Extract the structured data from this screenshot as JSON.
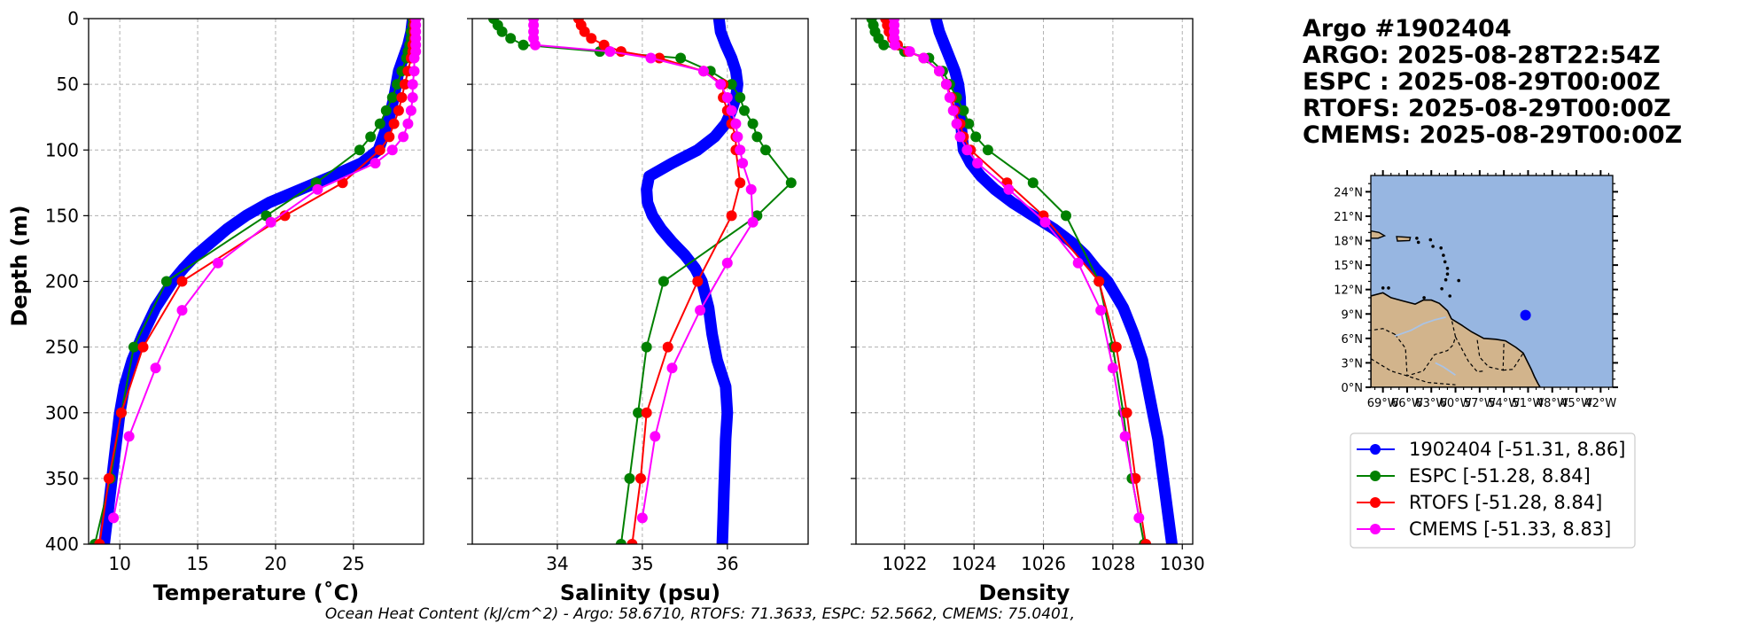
{
  "chart_data": {
    "type": "line",
    "depth_axis": {
      "label": "Depth (m)",
      "ylim": [
        400,
        0
      ],
      "ticks": [
        0,
        50,
        100,
        150,
        200,
        250,
        300,
        350,
        400
      ],
      "grid": true
    },
    "panels": [
      {
        "id": "temperature",
        "xlabel": "Temperature (˚C)",
        "xlim": [
          8,
          29.5
        ],
        "xticks": [
          10,
          15,
          20,
          25
        ],
        "series": [
          {
            "name": "1902404 [-51.31, 8.86]",
            "color": "#0000ff",
            "style": "thick",
            "depth": [
              0,
              10,
              20,
              30,
              40,
              60,
              80,
              100,
              110,
              120,
              130,
              140,
              150,
              160,
              170,
              180,
              190,
              200,
              220,
              240,
              260,
              280,
              300,
              320,
              340,
              360,
              380,
              400
            ],
            "values": [
              28.8,
              28.7,
              28.5,
              28.2,
              27.9,
              27.6,
              27.2,
              26.6,
              25.5,
              23.6,
              21.6,
              19.6,
              18.1,
              16.9,
              15.9,
              14.9,
              14.1,
              13.4,
              12.3,
              11.5,
              10.8,
              10.3,
              10.0,
              9.8,
              9.6,
              9.4,
              9.2,
              9.0
            ]
          },
          {
            "name": "ESPC [-51.28, 8.84]",
            "color": "#008000",
            "style": "marker",
            "depth": [
              0,
              5,
              10,
              15,
              20,
              25,
              30,
              40,
              50,
              60,
              70,
              80,
              90,
              100,
              125,
              150,
              200,
              250,
              300,
              350,
              400
            ],
            "values": [
              28.8,
              28.8,
              28.7,
              28.7,
              28.6,
              28.5,
              28.4,
              28.1,
              27.8,
              27.5,
              27.1,
              26.7,
              26.1,
              25.4,
              22.6,
              19.4,
              13.0,
              10.9,
              10.1,
              9.4,
              8.4
            ]
          },
          {
            "name": "RTOFS [-51.28, 8.84]",
            "color": "#ff0000",
            "style": "marker",
            "depth": [
              0,
              5,
              10,
              15,
              20,
              25,
              30,
              40,
              50,
              60,
              70,
              80,
              90,
              100,
              125,
              150,
              200,
              250,
              300,
              350,
              400
            ],
            "values": [
              28.9,
              28.9,
              28.9,
              28.9,
              28.8,
              28.8,
              28.7,
              28.5,
              28.3,
              28.1,
              27.9,
              27.6,
              27.3,
              26.7,
              24.3,
              20.6,
              14.0,
              11.5,
              10.1,
              9.3,
              8.7
            ]
          },
          {
            "name": "CMEMS [-51.33, 8.83]",
            "color": "#ff00ff",
            "style": "marker",
            "depth": [
              0,
              5,
              10,
              15,
              20,
              25,
              30,
              40,
              50,
              60,
              70,
              80,
              90,
              100,
              110,
              130,
              155,
              186,
              222,
              266,
              318,
              380
            ],
            "values": [
              29.0,
              29.0,
              29.0,
              29.0,
              29.0,
              29.0,
              28.9,
              28.9,
              28.8,
              28.8,
              28.7,
              28.5,
              28.2,
              27.5,
              26.4,
              22.7,
              19.7,
              16.3,
              14.0,
              12.3,
              10.6,
              9.6
            ]
          }
        ]
      },
      {
        "id": "salinity",
        "xlabel": "Salinity (psu)",
        "xlim": [
          33.0,
          36.95
        ],
        "xticks": [
          34,
          35,
          36
        ],
        "series": [
          {
            "name": "1902404 [-51.31, 8.86]",
            "color": "#0000ff",
            "style": "thick",
            "depth": [
              0,
              10,
              20,
              30,
              40,
              50,
              60,
              70,
              80,
              90,
              100,
              110,
              120,
              130,
              140,
              150,
              160,
              170,
              180,
              190,
              200,
              220,
              240,
              260,
              280,
              300,
              320,
              340,
              360,
              380,
              400
            ],
            "values": [
              35.9,
              35.92,
              35.98,
              36.05,
              36.1,
              36.12,
              36.1,
              36.05,
              35.98,
              35.85,
              35.65,
              35.35,
              35.08,
              35.05,
              35.06,
              35.12,
              35.22,
              35.35,
              35.5,
              35.62,
              35.7,
              35.78,
              35.82,
              35.88,
              35.98,
              36.0,
              35.98,
              35.97,
              35.96,
              35.95,
              35.94
            ]
          },
          {
            "name": "ESPC [-51.28, 8.84]",
            "color": "#008000",
            "style": "marker",
            "depth": [
              0,
              5,
              10,
              15,
              20,
              25,
              30,
              40,
              50,
              60,
              70,
              80,
              90,
              100,
              125,
              150,
              200,
              250,
              300,
              350,
              400
            ],
            "values": [
              33.25,
              33.3,
              33.35,
              33.45,
              33.6,
              34.5,
              35.45,
              35.8,
              36.05,
              36.15,
              36.2,
              36.3,
              36.35,
              36.45,
              36.75,
              36.35,
              35.25,
              35.05,
              34.95,
              34.85,
              34.75
            ]
          },
          {
            "name": "RTOFS [-51.28, 8.84]",
            "color": "#ff0000",
            "style": "marker",
            "depth": [
              0,
              5,
              10,
              15,
              20,
              25,
              30,
              40,
              50,
              60,
              70,
              80,
              90,
              100,
              125,
              150,
              200,
              250,
              300,
              350,
              400
            ],
            "values": [
              34.25,
              34.28,
              34.32,
              34.4,
              34.55,
              34.75,
              35.2,
              35.72,
              35.95,
              35.95,
              36.0,
              36.05,
              36.1,
              36.1,
              36.15,
              36.05,
              35.65,
              35.3,
              35.05,
              34.98,
              34.88
            ]
          },
          {
            "name": "CMEMS [-51.33, 8.83]",
            "color": "#ff00ff",
            "style": "marker",
            "depth": [
              0,
              5,
              10,
              15,
              20,
              25,
              30,
              40,
              50,
              60,
              70,
              80,
              90,
              100,
              110,
              130,
              155,
              186,
              222,
              266,
              318,
              380
            ],
            "values": [
              33.72,
              33.72,
              33.72,
              33.72,
              33.74,
              34.62,
              35.1,
              35.72,
              35.92,
              36.0,
              36.05,
              36.1,
              36.12,
              36.15,
              36.18,
              36.28,
              36.3,
              36.0,
              35.68,
              35.35,
              35.15,
              35.0
            ]
          }
        ]
      },
      {
        "id": "density",
        "xlabel": "Density",
        "xlim": [
          1020.6,
          1030.3
        ],
        "xticks": [
          1022,
          1024,
          1026,
          1028,
          1030
        ],
        "series": [
          {
            "name": "1902404 [-51.31, 8.86]",
            "color": "#0000ff",
            "style": "thick",
            "depth": [
              0,
              10,
              20,
              30,
              40,
              50,
              60,
              80,
              100,
              110,
              120,
              130,
              140,
              150,
              160,
              170,
              180,
              190,
              200,
              220,
              240,
              260,
              280,
              300,
              320,
              340,
              360,
              380,
              400
            ],
            "values": [
              1022.9,
              1023.0,
              1023.15,
              1023.3,
              1023.45,
              1023.55,
              1023.6,
              1023.62,
              1023.7,
              1023.9,
              1024.2,
              1024.6,
              1025.1,
              1025.7,
              1026.3,
              1026.8,
              1027.2,
              1027.5,
              1027.85,
              1028.3,
              1028.6,
              1028.85,
              1029.0,
              1029.15,
              1029.3,
              1029.4,
              1029.5,
              1029.6,
              1029.7
            ]
          },
          {
            "name": "ESPC [-51.28, 8.84]",
            "color": "#008000",
            "style": "marker",
            "depth": [
              0,
              5,
              10,
              15,
              20,
              25,
              30,
              40,
              50,
              60,
              70,
              80,
              90,
              100,
              125,
              150,
              200,
              250,
              300,
              350,
              400
            ],
            "values": [
              1021.05,
              1021.1,
              1021.15,
              1021.25,
              1021.4,
              1022.0,
              1022.7,
              1023.1,
              1023.3,
              1023.5,
              1023.7,
              1023.85,
              1024.05,
              1024.4,
              1025.7,
              1026.65,
              1027.6,
              1028.0,
              1028.3,
              1028.55,
              1028.9
            ]
          },
          {
            "name": "RTOFS [-51.28, 8.84]",
            "color": "#ff0000",
            "style": "marker",
            "depth": [
              0,
              5,
              10,
              15,
              20,
              25,
              30,
              40,
              50,
              60,
              70,
              80,
              90,
              100,
              125,
              150,
              200,
              250,
              300,
              350,
              400
            ],
            "values": [
              1021.45,
              1021.5,
              1021.55,
              1021.65,
              1021.8,
              1022.1,
              1022.55,
              1023.0,
              1023.2,
              1023.35,
              1023.45,
              1023.6,
              1023.7,
              1023.9,
              1024.95,
              1026.0,
              1027.6,
              1028.1,
              1028.4,
              1028.65,
              1028.95
            ]
          },
          {
            "name": "CMEMS [-51.33, 8.83]",
            "color": "#ff00ff",
            "style": "marker",
            "depth": [
              0,
              5,
              10,
              15,
              20,
              25,
              30,
              40,
              50,
              60,
              70,
              80,
              90,
              100,
              110,
              130,
              155,
              186,
              222,
              266,
              318,
              380
            ],
            "values": [
              1021.7,
              1021.7,
              1021.7,
              1021.7,
              1021.72,
              1022.15,
              1022.55,
              1023.0,
              1023.2,
              1023.3,
              1023.4,
              1023.5,
              1023.6,
              1023.8,
              1024.1,
              1025.0,
              1026.05,
              1027.0,
              1027.65,
              1028.0,
              1028.35,
              1028.75
            ]
          }
        ]
      }
    ],
    "caption": "Ocean Heat Content (kJ/cm^2) - Argo: 58.6710,  RTOFS: 71.3633,  ESPC: 52.5662,  CMEMS: 75.0401,"
  },
  "info": {
    "title_lines": [
      "Argo #1902404",
      "ARGO: 2025-08-28T22:54Z",
      "ESPC : 2025-08-29T00:00Z",
      "RTOFS: 2025-08-29T00:00Z",
      "CMEMS: 2025-08-29T00:00Z"
    ]
  },
  "map": {
    "lon_range": [
      -70.5,
      -40.5
    ],
    "lat_range": [
      0,
      26
    ],
    "lat_ticks": [
      "24°N",
      "21°N",
      "18°N",
      "15°N",
      "12°N",
      "9°N",
      "6°N",
      "3°N",
      "0°N"
    ],
    "lat_tick_values": [
      24,
      21,
      18,
      15,
      12,
      9,
      6,
      3,
      0
    ],
    "lon_ticks": [
      "69°W",
      "66°W",
      "63°W",
      "60°W",
      "57°W",
      "54°W",
      "51°W",
      "48°W",
      "45°W",
      "42°W"
    ],
    "lon_tick_values": [
      -69,
      -66,
      -63,
      -60,
      -57,
      -54,
      -51,
      -48,
      -45,
      -42
    ],
    "float_location": {
      "lon": -51.31,
      "lat": 8.86
    },
    "ocean_color": "#97b6e1",
    "land_color": "#d2b48c",
    "marker_color": "#0000ff"
  },
  "legend": {
    "entries": [
      {
        "label": "1902404 [-51.31, 8.86]",
        "color": "#0000ff"
      },
      {
        "label": "ESPC [-51.28, 8.84]",
        "color": "#008000"
      },
      {
        "label": "RTOFS [-51.28, 8.84]",
        "color": "#ff0000"
      },
      {
        "label": "CMEMS [-51.33, 8.83]",
        "color": "#ff00ff"
      }
    ]
  }
}
